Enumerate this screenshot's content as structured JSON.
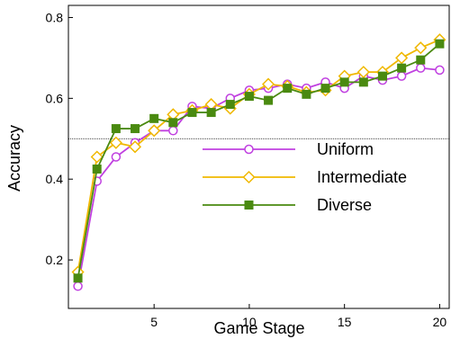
{
  "chart_data": {
    "type": "line",
    "title": "",
    "xlabel": "Game Stage",
    "ylabel": "Accuracy",
    "xlim": [
      0.5,
      20.5
    ],
    "ylim": [
      0.08,
      0.83
    ],
    "xticks": [
      5,
      10,
      15,
      20
    ],
    "yticks": [
      0.2,
      0.4,
      0.6,
      0.8
    ],
    "grid": false,
    "legend_position": "center-right",
    "reference_line": {
      "y": 0.5,
      "style": "dotted",
      "color": "#000000"
    },
    "x": [
      1,
      2,
      3,
      4,
      5,
      6,
      7,
      8,
      9,
      10,
      11,
      12,
      13,
      14,
      15,
      16,
      17,
      18,
      19,
      20
    ],
    "series": [
      {
        "name": "Uniform",
        "color": "#c040e0",
        "marker": "circle-open",
        "values": [
          0.135,
          0.395,
          0.455,
          0.49,
          0.52,
          0.52,
          0.58,
          0.575,
          0.6,
          0.62,
          0.625,
          0.635,
          0.625,
          0.64,
          0.625,
          0.655,
          0.645,
          0.655,
          0.675,
          0.67
        ]
      },
      {
        "name": "Intermediate",
        "color": "#f0b800",
        "marker": "diamond-open",
        "values": [
          0.17,
          0.455,
          0.49,
          0.48,
          0.52,
          0.56,
          0.57,
          0.585,
          0.575,
          0.61,
          0.635,
          0.63,
          0.615,
          0.62,
          0.655,
          0.665,
          0.665,
          0.7,
          0.725,
          0.745
        ]
      },
      {
        "name": "Diverse",
        "color": "#4a8a10",
        "marker": "square-filled",
        "values": [
          0.155,
          0.425,
          0.525,
          0.525,
          0.55,
          0.54,
          0.565,
          0.565,
          0.585,
          0.605,
          0.595,
          0.625,
          0.61,
          0.625,
          0.64,
          0.64,
          0.655,
          0.675,
          0.695,
          0.735
        ]
      }
    ]
  }
}
